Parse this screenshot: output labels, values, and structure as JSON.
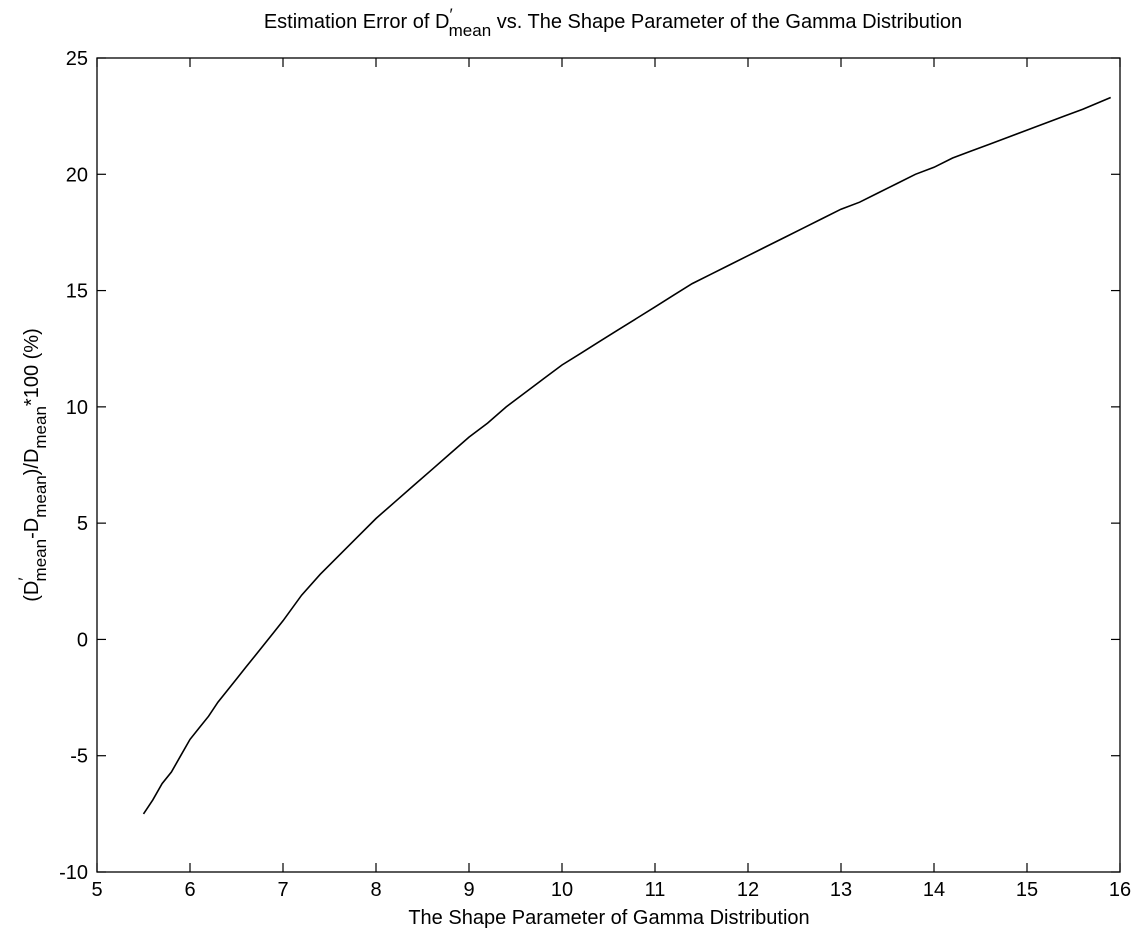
{
  "chart_data": {
    "type": "line",
    "title": {
      "prefix": "Estimation Error of D",
      "prime": "′",
      "subscript": "mean",
      "suffix": " vs. The Shape Parameter of the Gamma Distribution"
    },
    "xlabel": "The Shape Parameter of Gamma Distribution",
    "ylabel": {
      "p1": "(D",
      "prime": "′",
      "sub1": "mean",
      "p2": "-D",
      "sub2": "mean",
      "p3": ")/D",
      "sub3": "mean",
      "p4": "*100 (%)"
    },
    "xlim": [
      5,
      16
    ],
    "ylim": [
      -10,
      25
    ],
    "xticks": [
      "5",
      "6",
      "7",
      "8",
      "9",
      "10",
      "11",
      "12",
      "13",
      "14",
      "15",
      "16"
    ],
    "yticks": [
      "-10",
      "-5",
      "0",
      "5",
      "10",
      "15",
      "20",
      "25"
    ],
    "grid": false,
    "legend": "none",
    "line_color": "#000000",
    "series": [
      {
        "x": [
          5.5,
          5.6,
          5.7,
          5.8,
          5.9,
          6.0,
          6.1,
          6.2,
          6.3,
          6.4,
          6.5,
          6.6,
          6.7,
          6.8,
          6.9,
          7.0,
          7.2,
          7.4,
          7.6,
          7.8,
          8.0,
          8.2,
          8.4,
          8.6,
          8.8,
          9.0,
          9.2,
          9.4,
          9.6,
          9.8,
          10.0,
          10.2,
          10.4,
          10.6,
          10.8,
          11.0,
          11.2,
          11.4,
          11.6,
          11.8,
          12.0,
          12.2,
          12.4,
          12.6,
          12.8,
          13.0,
          13.2,
          13.4,
          13.6,
          13.8,
          14.0,
          14.2,
          14.4,
          14.6,
          14.8,
          15.0,
          15.2,
          15.4,
          15.6,
          15.9
        ],
        "y": [
          -7.5,
          -6.9,
          -6.2,
          -5.7,
          -5.0,
          -4.3,
          -3.8,
          -3.3,
          -2.7,
          -2.2,
          -1.7,
          -1.2,
          -0.7,
          -0.2,
          0.3,
          0.8,
          1.9,
          2.8,
          3.6,
          4.4,
          5.2,
          5.9,
          6.6,
          7.3,
          8.0,
          8.7,
          9.3,
          10.0,
          10.6,
          11.2,
          11.8,
          12.3,
          12.8,
          13.3,
          13.8,
          14.3,
          14.8,
          15.3,
          15.7,
          16.1,
          16.5,
          16.9,
          17.3,
          17.7,
          18.1,
          18.5,
          18.8,
          19.2,
          19.6,
          20.0,
          20.3,
          20.7,
          21.0,
          21.3,
          21.6,
          21.9,
          22.2,
          22.5,
          22.8,
          23.3
        ]
      }
    ]
  }
}
